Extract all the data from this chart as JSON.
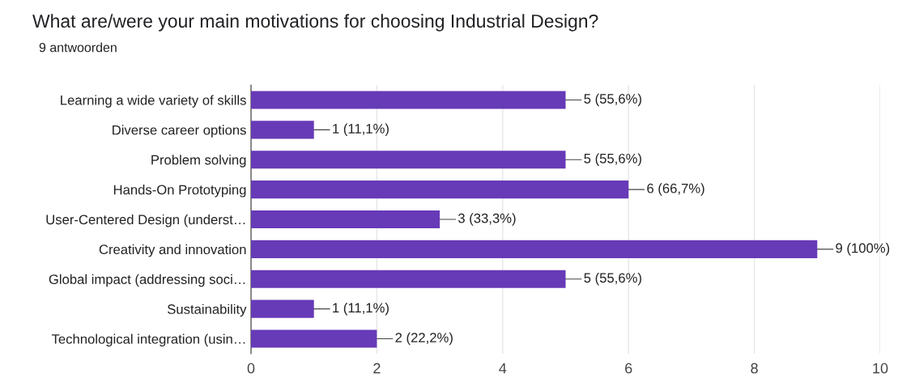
{
  "chart_data": {
    "type": "bar",
    "orientation": "horizontal",
    "title": "What are/were your main motivations for choosing Industrial Design?",
    "subtitle": "9 antwoorden",
    "categories": [
      "Learning a wide variety of skills",
      "Diverse career options",
      "Problem solving",
      "Hands-On Prototyping",
      "User-Centered Design (underst…",
      "Creativity and innovation",
      "Global impact (addressing soci…",
      "Sustainability",
      "Technological integration (usin…"
    ],
    "values": [
      5,
      1,
      5,
      6,
      3,
      9,
      5,
      1,
      2
    ],
    "value_labels": [
      "5 (55,6%)",
      "1 (11,1%)",
      "5 (55,6%)",
      "6 (66,7%)",
      "3 (33,3%)",
      "9 (100%)",
      "5 (55,6%)",
      "1 (11,1%)",
      "2 (22,2%)"
    ],
    "color": "#673ab7",
    "xlim": [
      0,
      10
    ],
    "xticks": [
      0,
      2,
      4,
      6,
      8,
      10
    ],
    "grid": "x"
  }
}
